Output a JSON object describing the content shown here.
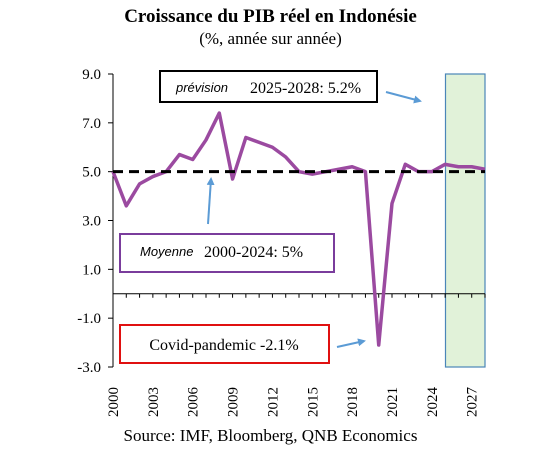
{
  "chart_data": {
    "type": "line",
    "title": "Croissance du PIB réel en Indonésie",
    "subtitle": "(%, année sur année)",
    "source": "Source: IMF, Bloomberg, QNB Economics",
    "x": [
      2000,
      2001,
      2002,
      2003,
      2004,
      2005,
      2006,
      2007,
      2008,
      2009,
      2010,
      2011,
      2012,
      2013,
      2014,
      2015,
      2016,
      2017,
      2018,
      2019,
      2020,
      2021,
      2022,
      2023,
      2024,
      2025,
      2026,
      2027,
      2028
    ],
    "series": [
      {
        "values": [
          5.0,
          3.6,
          4.5,
          4.8,
          5.0,
          5.7,
          5.5,
          6.3,
          7.4,
          4.7,
          6.4,
          6.2,
          6.0,
          5.6,
          5.0,
          4.9,
          5.0,
          5.1,
          5.2,
          5.0,
          -2.1,
          3.7,
          5.3,
          5.0,
          5.0,
          5.3,
          5.2,
          5.2,
          5.1
        ],
        "color": "#9b4aa0"
      },
      {
        "values": [
          5,
          5,
          5,
          5,
          5,
          5,
          5,
          5,
          5,
          5,
          5,
          5,
          5,
          5,
          5,
          5,
          5,
          5,
          5,
          5,
          5,
          5,
          5,
          5,
          5,
          5,
          5,
          5,
          5
        ],
        "color": "#000000",
        "style": "dashed"
      }
    ],
    "xticks": [
      "2000",
      "2003",
      "2006",
      "2009",
      "2012",
      "2015",
      "2018",
      "2021",
      "2024",
      "2027"
    ],
    "yticks": [
      "9.0",
      "7.0",
      "5.0",
      "3.0",
      "1.0",
      "-1.0",
      "-3.0"
    ],
    "ylim": [
      -3,
      9
    ],
    "xlim": [
      2000,
      2028
    ],
    "forecast_region": {
      "from": 2025,
      "to": 2028,
      "color": "#e1f2d9",
      "border": "#4a86b8"
    },
    "annotations": {
      "forecast": {
        "italic": "prévision",
        "text": "2025-2028: 5.2%",
        "border": "#000000"
      },
      "average": {
        "italic": "Moyenne",
        "text": "2000-2024: 5%",
        "border": "#7a3c9c"
      },
      "covid": {
        "text": "Covid-pandemic -2.1%",
        "border": "#e01010"
      }
    },
    "arrow_color": "#5b9bd5"
  }
}
